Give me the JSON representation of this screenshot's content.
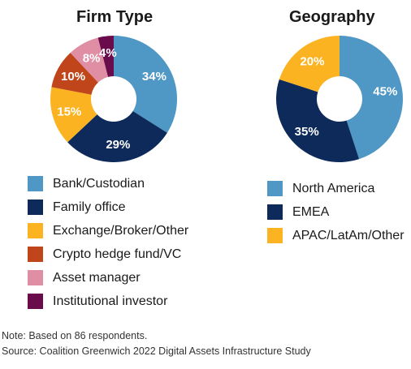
{
  "chart_data": [
    {
      "type": "pie",
      "title": "Firm Type",
      "labels": [
        "Bank/Custodian",
        "Family office",
        "Exchange/Broker/Other",
        "Crypto hedge fund/VC",
        "Asset manager",
        "Institutional investor"
      ],
      "values": [
        34,
        29,
        15,
        10,
        8,
        4
      ],
      "value_labels": [
        "34%",
        "29%",
        "15%",
        "10%",
        "8%",
        "4%"
      ],
      "colors": [
        "#4f97c4",
        "#0e2a5a",
        "#fbb322",
        "#c1451b",
        "#e08ea4",
        "#6a0b4b"
      ],
      "donut": true,
      "legend_position": "bottom"
    },
    {
      "type": "pie",
      "title": "Geography",
      "labels": [
        "North America",
        "EMEA",
        "APAC/LatAm/Other"
      ],
      "values": [
        45,
        35,
        20
      ],
      "value_labels": [
        "45%",
        "35%",
        "20%"
      ],
      "colors": [
        "#4f97c4",
        "#0e2a5a",
        "#fbb322"
      ],
      "donut": true,
      "legend_position": "bottom"
    }
  ],
  "footer": {
    "note": "Note: Based on 86 respondents.",
    "source": "Source: Coalition Greenwich 2022 Digital Assets Infrastructure Study"
  }
}
